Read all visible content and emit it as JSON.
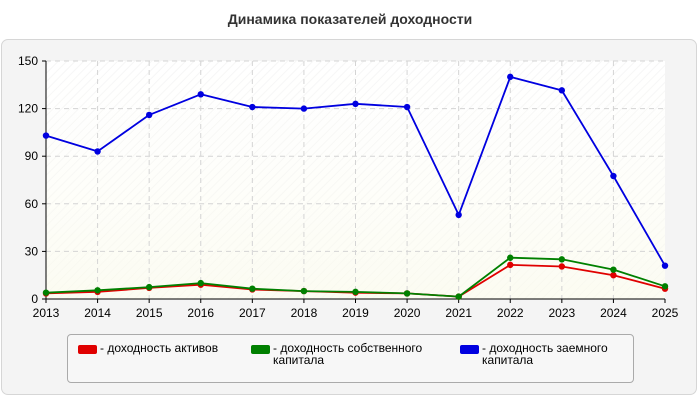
{
  "chart_data": {
    "type": "line",
    "title": "Динамика показателей доходности",
    "x": [
      "2013",
      "2014",
      "2015",
      "2016",
      "2017",
      "2018",
      "2019",
      "2020",
      "2021",
      "2022",
      "2023",
      "2024",
      "2025"
    ],
    "yticks": [
      "0",
      "30",
      "60",
      "90",
      "120",
      "150"
    ],
    "ylim": [
      0,
      150
    ],
    "grid": true,
    "legend_position": "bottom",
    "series": [
      {
        "name": "- доходность активов",
        "color": "#e00000",
        "values": [
          3.5,
          4.5,
          7,
          9,
          6,
          5,
          4,
          3.5,
          1.5,
          21.5,
          20.5,
          15,
          6.5
        ]
      },
      {
        "name": "- доходность собственного\nкапитала",
        "color": "#008000",
        "values": [
          4,
          5.5,
          7.5,
          10,
          6.5,
          5,
          4.5,
          3.5,
          1.5,
          26,
          25,
          18.5,
          8
        ]
      },
      {
        "name": "- доходность заемного\nкапитала",
        "color": "#0000e0",
        "values": [
          103,
          93,
          116,
          129,
          121,
          120,
          123,
          121,
          53,
          140,
          131.5,
          77.5,
          21
        ]
      }
    ]
  }
}
